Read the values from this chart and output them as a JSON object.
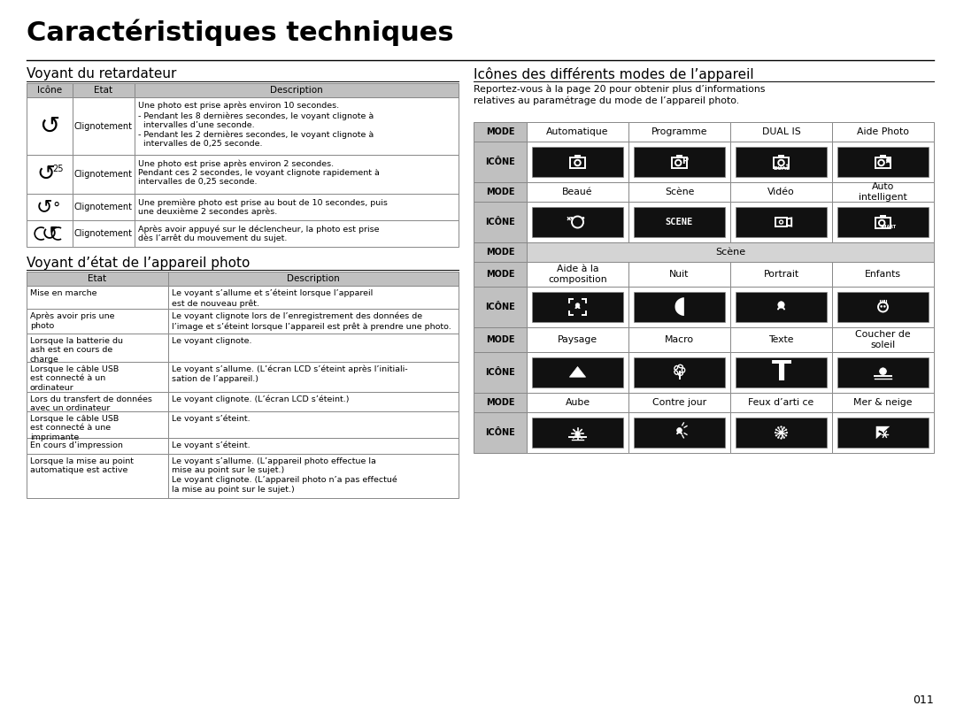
{
  "page_bg": "#ffffff",
  "title": "Caractéristiques techniques",
  "title_fontsize": 22,
  "section1_title": "Voyant du retardateur",
  "section2_title": "Voyant d’état de l’appareil photo",
  "section3_title": "Icônes des différents modes de l’appareil",
  "table1_headers": [
    "Icône",
    "Etat",
    "Description"
  ],
  "table1_rows": [
    [
      "Clignotement",
      "Une photo est prise après environ 10 secondes.\n- Pendant les 8 dernières secondes, le voyant clignote à\n  intervalles d’une seconde.\n- Pendant les 2 dernières secondes, le voyant clignote à\n  intervalles de 0,25 seconde."
    ],
    [
      "Clignotement",
      "Une photo est prise après environ 2 secondes.\nPendant ces 2 secondes, le voyant clignote rapidement à\nintervalles de 0,25 seconde."
    ],
    [
      "Clignotement",
      "Une première photo est prise au bout de 10 secondes, puis\nune deuxième 2 secondes après."
    ],
    [
      "Clignotement",
      "Après avoir appuyé sur le déclencheur, la photo est prise\ndès l’arrêt du mouvement du sujet."
    ]
  ],
  "table2_headers": [
    "Etat",
    "Description"
  ],
  "table2_rows": [
    [
      "Mise en marche",
      "Le voyant s’allume et s’éteint lorsque l’appareil\nest de nouveau prêt."
    ],
    [
      "Après avoir pris une\nphoto",
      "Le voyant clignote lors de l’enregistrement des données de\nl’image et s’éteint lorsque l’appareil est prêt à prendre une photo."
    ],
    [
      "Lorsque la batterie du\nash est en cours de\ncharge",
      "Le voyant clignote."
    ],
    [
      "Lorsque le câble USB\nest connecté à un\nordinateur",
      "Le voyant s’allume. (L’écran LCD s’éteint après l’initiali-\nsation de l’appareil.)"
    ],
    [
      "Lors du transfert de données\navec un ordinateur",
      "Le voyant clignote. (L’écran LCD s’éteint.)"
    ],
    [
      "Lorsque le câble USB\nest connecté à une\nimprimante",
      "Le voyant s’éteint."
    ],
    [
      "En cours d’impression",
      "Le voyant s’éteint."
    ],
    [
      "Lorsque la mise au point\nautomatique est active",
      "Le voyant s’allume. (L’appareil photo effectue la\nmise au point sur le sujet.)\nLe voyant clignote. (L’appareil photo n’a pas effectué\nla mise au point sur le sujet.)"
    ]
  ],
  "section3_desc": "Reportez-vous à la page 20 pour obtenir plus d’informations\nrelatives au paramétrage du mode de l’appareil photo.",
  "mode_row1": [
    "MODE",
    "Automatique",
    "Programme",
    "DUAL IS",
    "Aide Photo"
  ],
  "mode_row2": [
    "MODE",
    "Beaué",
    "Scène",
    "Vidéo",
    "Auto\nintelligent"
  ],
  "scene_mode_row1": [
    "MODE",
    "Aide à la\ncomposition",
    "Nuit",
    "Portrait",
    "Enfants"
  ],
  "scene_mode_row2": [
    "MODE",
    "Paysage",
    "Macro",
    "Texte",
    "Coucher de\nsoleil"
  ],
  "scene_mode_row3": [
    "MODE",
    "Aube",
    "Contre jour",
    "Feux d’arti ce",
    "Mer & neige"
  ],
  "header_bg": "#c0c0c0",
  "scene_header_bg": "#d4d4d4",
  "table_border_color": "#888888",
  "footer_text": "011"
}
